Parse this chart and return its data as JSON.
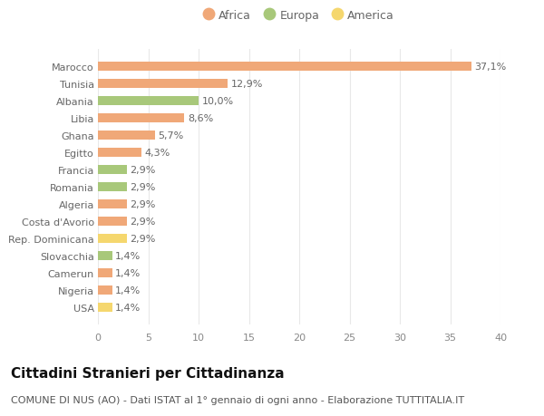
{
  "categories": [
    "USA",
    "Nigeria",
    "Camerun",
    "Slovacchia",
    "Rep. Dominicana",
    "Costa d'Avorio",
    "Algeria",
    "Romania",
    "Francia",
    "Egitto",
    "Ghana",
    "Libia",
    "Albania",
    "Tunisia",
    "Marocco"
  ],
  "values": [
    1.4,
    1.4,
    1.4,
    1.4,
    2.9,
    2.9,
    2.9,
    2.9,
    2.9,
    4.3,
    5.7,
    8.6,
    10.0,
    12.9,
    37.1
  ],
  "labels": [
    "1,4%",
    "1,4%",
    "1,4%",
    "1,4%",
    "2,9%",
    "2,9%",
    "2,9%",
    "2,9%",
    "2,9%",
    "4,3%",
    "5,7%",
    "8,6%",
    "10,0%",
    "12,9%",
    "37,1%"
  ],
  "colors": [
    "#f5d76e",
    "#f0a878",
    "#f0a878",
    "#a8c87a",
    "#f5d76e",
    "#f0a878",
    "#f0a878",
    "#a8c87a",
    "#a8c87a",
    "#f0a878",
    "#f0a878",
    "#f0a878",
    "#a8c87a",
    "#f0a878",
    "#f0a878"
  ],
  "legend": [
    {
      "label": "Africa",
      "color": "#f0a878"
    },
    {
      "label": "Europa",
      "color": "#a8c87a"
    },
    {
      "label": "America",
      "color": "#f5d76e"
    }
  ],
  "title": "Cittadini Stranieri per Cittadinanza",
  "subtitle": "COMUNE DI NUS (AO) - Dati ISTAT al 1° gennaio di ogni anno - Elaborazione TUTTITALIA.IT",
  "xlim": [
    0,
    40
  ],
  "xticks": [
    0,
    5,
    10,
    15,
    20,
    25,
    30,
    35,
    40
  ],
  "background_color": "#ffffff",
  "grid_color": "#e8e8e8",
  "title_fontsize": 11,
  "subtitle_fontsize": 8,
  "label_fontsize": 8,
  "tick_fontsize": 8,
  "legend_fontsize": 9,
  "bar_height": 0.55
}
